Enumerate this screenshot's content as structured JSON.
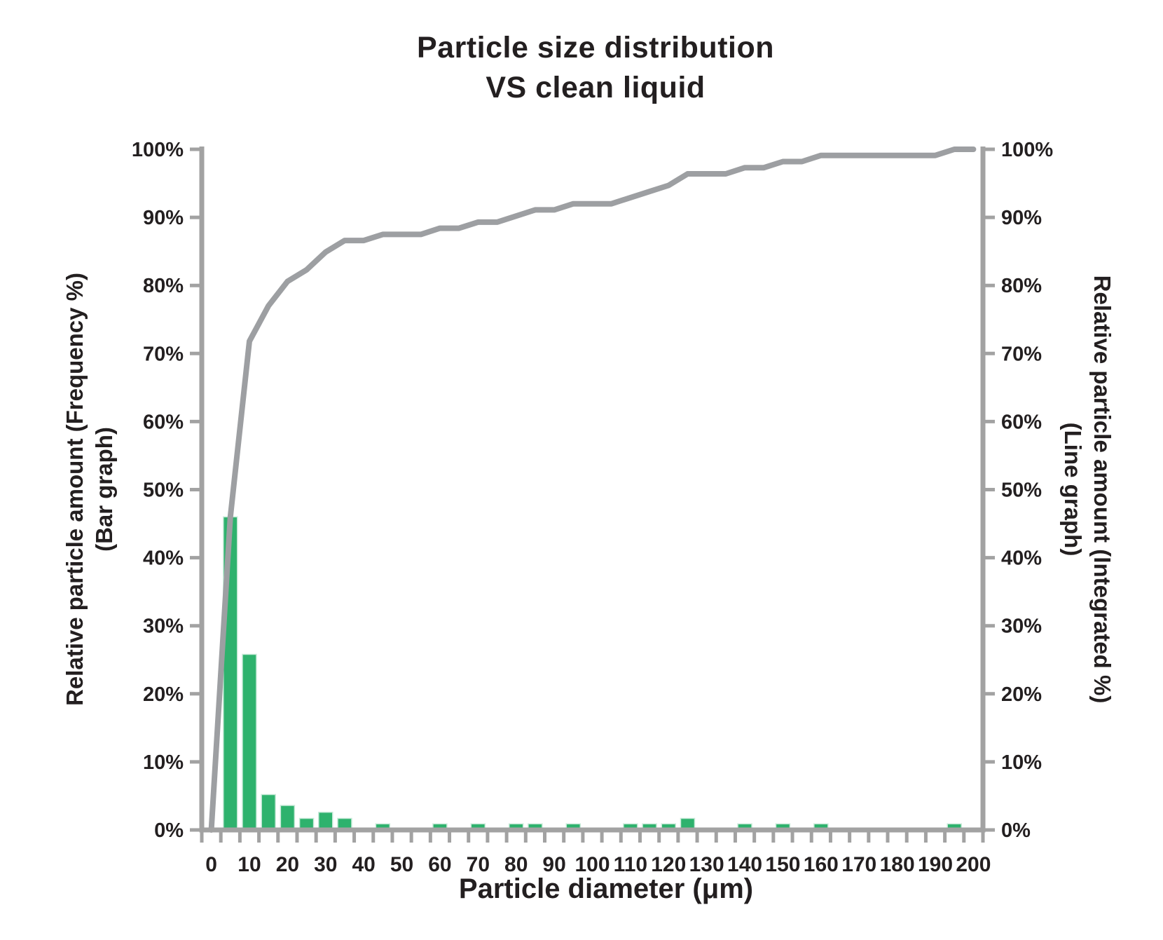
{
  "title": {
    "line1": "Particle size distribution",
    "line2": "VS clean liquid"
  },
  "axes": {
    "x": {
      "title": "Particle diameter (μm)"
    },
    "y_left": {
      "title_line1": "Relative particle amount (Frequency %)",
      "title_line2": "(Bar graph)"
    },
    "y_right": {
      "title_line1": "Relative particle amount (Integrated %)",
      "title_line2": "(Line graph)"
    }
  },
  "chart_data": {
    "type": "bar+line combo",
    "title": "Particle size distribution VS clean liquid",
    "xlabel": "Particle diameter (μm)",
    "ylabel_left": "Relative particle amount (Frequency %) (Bar graph)",
    "ylabel_right": "Relative particle amount (Integrated %) (Line graph)",
    "x": [
      0,
      5,
      10,
      15,
      20,
      25,
      30,
      35,
      40,
      45,
      50,
      55,
      60,
      65,
      70,
      75,
      80,
      85,
      90,
      95,
      100,
      105,
      110,
      115,
      120,
      125,
      130,
      135,
      140,
      145,
      150,
      155,
      160,
      165,
      170,
      175,
      180,
      185,
      190,
      195,
      200
    ],
    "series": [
      {
        "name": "Relative particle amount (Frequency %)",
        "type": "bar",
        "color": "#2eb26d",
        "edge_color": "#c9ead9",
        "values": [
          0,
          46,
          25.8,
          5.2,
          3.6,
          1.7,
          2.6,
          1.7,
          0,
          0.9,
          0,
          0,
          0.9,
          0,
          0.9,
          0,
          0.9,
          0.9,
          0,
          0.9,
          0,
          0,
          0.9,
          0.9,
          0.9,
          1.7,
          0,
          0,
          0.9,
          0,
          0.9,
          0,
          0.9,
          0,
          0,
          0,
          0,
          0,
          0,
          0.9,
          0
        ]
      },
      {
        "name": "Relative particle amount (Integrated %)",
        "type": "line",
        "color": "#9d9fa2",
        "values": [
          0,
          46,
          71.8,
          77,
          80.6,
          82.3,
          84.9,
          86.6,
          86.6,
          87.5,
          87.5,
          87.5,
          88.4,
          88.4,
          89.3,
          89.3,
          90.2,
          91.1,
          91.1,
          92,
          92,
          92,
          92.9,
          93.8,
          94.7,
          96.4,
          96.4,
          96.4,
          97.3,
          97.3,
          98.2,
          98.2,
          99.1,
          99.1,
          99.1,
          99.1,
          99.1,
          99.1,
          99.1,
          100,
          100
        ]
      }
    ],
    "ylim": [
      0,
      100
    ],
    "y_tick_labels": [
      "0%",
      "10%",
      "20%",
      "30%",
      "40%",
      "50%",
      "60%",
      "70%",
      "80%",
      "90%",
      "100%"
    ],
    "x_tick_labels": [
      "0",
      "10",
      "20",
      "30",
      "40",
      "50",
      "60",
      "70",
      "80",
      "90",
      "100",
      "110",
      "120",
      "130",
      "140",
      "150",
      "160",
      "170",
      "180",
      "190",
      "200"
    ],
    "x_label_step_um": 10,
    "minor_x_ticks_every_um": 5,
    "grid": "off",
    "legend": "none",
    "axis_color": "#a2a2a2",
    "tick_label_color": "#231f20"
  }
}
